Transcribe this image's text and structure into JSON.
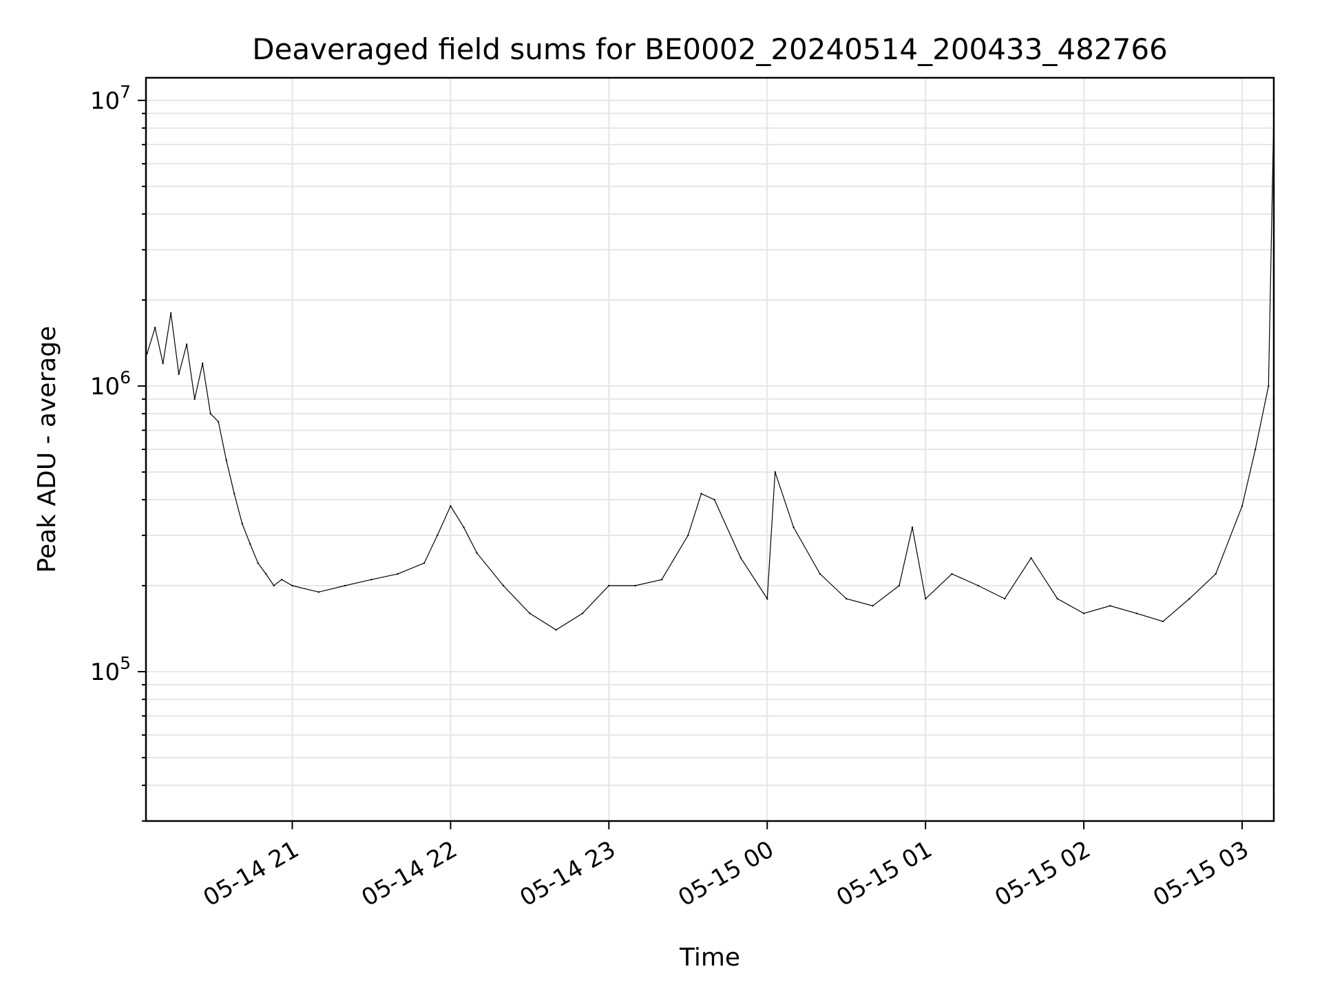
{
  "chart_data": {
    "type": "line",
    "title": "Deaveraged field sums for BE0002_20240514_200433_482766",
    "xlabel": "Time",
    "ylabel": "Peak ADU - average",
    "y_scale": "log",
    "ylim": [
      30000,
      12000000
    ],
    "xlim": [
      "2024-05-14 20:04:33",
      "2024-05-15 03:12:00"
    ],
    "grid": "on (major and minor)",
    "x_ticks": [
      {
        "time": "2024-05-14 21:00",
        "label": "05-14 21"
      },
      {
        "time": "2024-05-14 22:00",
        "label": "05-14 22"
      },
      {
        "time": "2024-05-14 23:00",
        "label": "05-14 23"
      },
      {
        "time": "2024-05-15 00:00",
        "label": "05-15 00"
      },
      {
        "time": "2024-05-15 01:00",
        "label": "05-15 01"
      },
      {
        "time": "2024-05-15 02:00",
        "label": "05-15 02"
      },
      {
        "time": "2024-05-15 03:00",
        "label": "05-15 03"
      }
    ],
    "y_ticks": [
      {
        "value": 100000,
        "base": "10",
        "exp": "5"
      },
      {
        "value": 1000000,
        "base": "10",
        "exp": "6"
      },
      {
        "value": 10000000,
        "base": "10",
        "exp": "7"
      }
    ],
    "series": [
      {
        "color": "#000000",
        "points": [
          [
            "2024-05-14 20:05",
            1300000
          ],
          [
            "2024-05-14 20:08",
            1600000
          ],
          [
            "2024-05-14 20:11",
            1200000
          ],
          [
            "2024-05-14 20:14",
            1800000
          ],
          [
            "2024-05-14 20:17",
            1100000
          ],
          [
            "2024-05-14 20:20",
            1400000
          ],
          [
            "2024-05-14 20:23",
            900000
          ],
          [
            "2024-05-14 20:26",
            1200000
          ],
          [
            "2024-05-14 20:29",
            800000
          ],
          [
            "2024-05-14 20:32",
            750000
          ],
          [
            "2024-05-14 20:35",
            550000
          ],
          [
            "2024-05-14 20:38",
            420000
          ],
          [
            "2024-05-14 20:41",
            330000
          ],
          [
            "2024-05-14 20:44",
            280000
          ],
          [
            "2024-05-14 20:47",
            240000
          ],
          [
            "2024-05-14 20:50",
            220000
          ],
          [
            "2024-05-14 20:53",
            200000
          ],
          [
            "2024-05-14 20:56",
            210000
          ],
          [
            "2024-05-14 21:00",
            200000
          ],
          [
            "2024-05-14 21:10",
            190000
          ],
          [
            "2024-05-14 21:20",
            200000
          ],
          [
            "2024-05-14 21:30",
            210000
          ],
          [
            "2024-05-14 21:40",
            220000
          ],
          [
            "2024-05-14 21:50",
            240000
          ],
          [
            "2024-05-14 21:55",
            300000
          ],
          [
            "2024-05-14 22:00",
            380000
          ],
          [
            "2024-05-14 22:05",
            320000
          ],
          [
            "2024-05-14 22:10",
            260000
          ],
          [
            "2024-05-14 22:20",
            200000
          ],
          [
            "2024-05-14 22:30",
            160000
          ],
          [
            "2024-05-14 22:40",
            140000
          ],
          [
            "2024-05-14 22:50",
            160000
          ],
          [
            "2024-05-14 23:00",
            200000
          ],
          [
            "2024-05-14 23:10",
            200000
          ],
          [
            "2024-05-14 23:20",
            210000
          ],
          [
            "2024-05-14 23:30",
            300000
          ],
          [
            "2024-05-14 23:35",
            420000
          ],
          [
            "2024-05-14 23:40",
            400000
          ],
          [
            "2024-05-14 23:50",
            250000
          ],
          [
            "2024-05-15 00:00",
            180000
          ],
          [
            "2024-05-15 00:03",
            500000
          ],
          [
            "2024-05-15 00:10",
            320000
          ],
          [
            "2024-05-15 00:20",
            220000
          ],
          [
            "2024-05-15 00:30",
            180000
          ],
          [
            "2024-05-15 00:40",
            170000
          ],
          [
            "2024-05-15 00:50",
            200000
          ],
          [
            "2024-05-15 00:55",
            320000
          ],
          [
            "2024-05-15 01:00",
            180000
          ],
          [
            "2024-05-15 01:10",
            220000
          ],
          [
            "2024-05-15 01:20",
            200000
          ],
          [
            "2024-05-15 01:30",
            180000
          ],
          [
            "2024-05-15 01:40",
            250000
          ],
          [
            "2024-05-15 01:50",
            180000
          ],
          [
            "2024-05-15 02:00",
            160000
          ],
          [
            "2024-05-15 02:10",
            170000
          ],
          [
            "2024-05-15 02:20",
            160000
          ],
          [
            "2024-05-15 02:30",
            150000
          ],
          [
            "2024-05-15 02:40",
            180000
          ],
          [
            "2024-05-15 02:50",
            220000
          ],
          [
            "2024-05-15 03:00",
            380000
          ],
          [
            "2024-05-15 03:05",
            600000
          ],
          [
            "2024-05-15 03:10",
            1000000
          ],
          [
            "2024-05-15 03:12",
            9000000
          ]
        ]
      }
    ]
  }
}
